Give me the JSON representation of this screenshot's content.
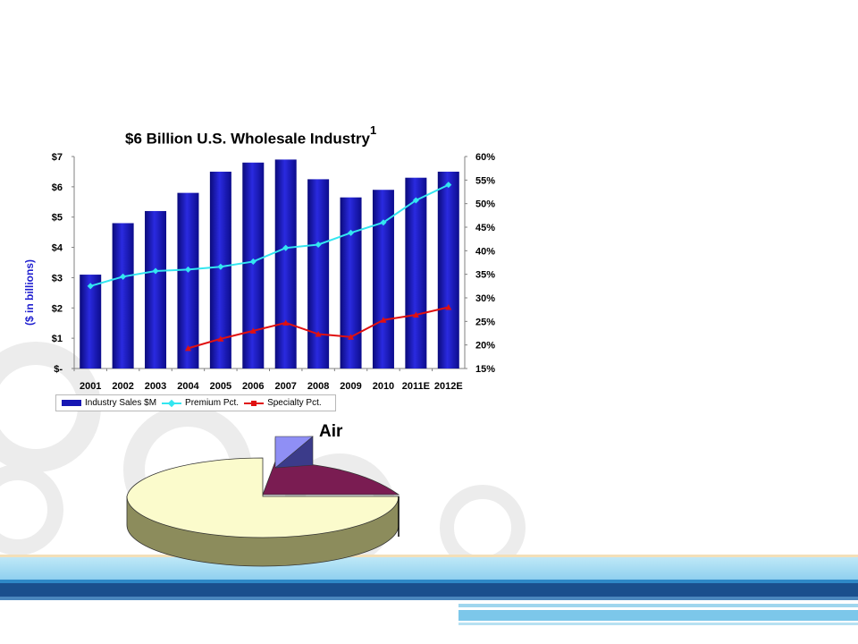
{
  "chart_data": [
    {
      "type": "bar",
      "title": "$6 Billion U.S. Wholesale Industry",
      "title_superscript": "1",
      "ylabel": "($ in billions)",
      "categories": [
        "2001",
        "2002",
        "2003",
        "2004",
        "2005",
        "2006",
        "2007",
        "2008",
        "2009",
        "2010",
        "2011E",
        "2012E"
      ],
      "series": [
        {
          "name": "Industry Sales $M",
          "type": "bar",
          "axis": "left",
          "color": "#1717b3",
          "values": [
            3.1,
            4.8,
            5.2,
            5.8,
            6.5,
            6.8,
            6.9,
            6.25,
            5.65,
            5.9,
            6.3,
            6.5
          ]
        },
        {
          "name": "Premium Pct.",
          "type": "line",
          "axis": "right",
          "color": "#33e6f0",
          "values": [
            32.5,
            34.5,
            35.7,
            36.0,
            36.6,
            37.7,
            40.6,
            41.3,
            43.8,
            46.0,
            50.7,
            54.0
          ]
        },
        {
          "name": "Specialty Pct.",
          "type": "line",
          "axis": "right",
          "color": "#e01010",
          "values": [
            null,
            null,
            null,
            19.3,
            21.3,
            23.0,
            24.7,
            22.3,
            21.7,
            25.3,
            26.4,
            28.0
          ]
        }
      ],
      "left_axis": {
        "range": [
          0,
          7
        ],
        "ticks": [
          "$-",
          "$1",
          "$2",
          "$3",
          "$4",
          "$5",
          "$6",
          "$7"
        ]
      },
      "right_axis": {
        "range": [
          15,
          60
        ],
        "ticks": [
          "15%",
          "20%",
          "25%",
          "30%",
          "35%",
          "40%",
          "45%",
          "50%",
          "55%",
          "60%"
        ]
      },
      "legend": "bottom",
      "grid": false
    },
    {
      "type": "pie",
      "labels": [
        "Air",
        "",
        ""
      ],
      "values": [
        4,
        24,
        72
      ],
      "colors": [
        "#8f8ff5",
        "#7a1c52",
        "#fbfbcc"
      ],
      "three_d": true
    }
  ]
}
